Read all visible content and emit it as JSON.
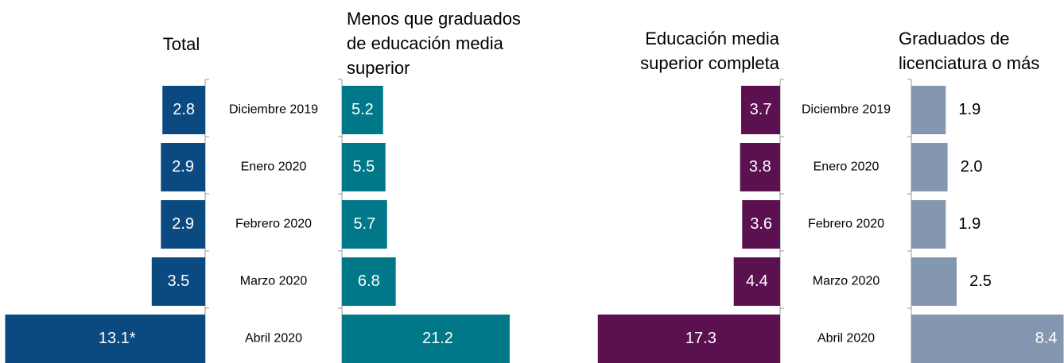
{
  "chart_data": {
    "type": "bar",
    "categories": [
      "Diciembre 2019",
      "Enero 2020",
      "Febrero 2020",
      "Marzo 2020",
      "Abril 2020"
    ],
    "series": [
      {
        "name": "Total",
        "color": "#0b4a80",
        "values": [
          2.8,
          2.9,
          2.9,
          3.5,
          13.1
        ],
        "value_labels": [
          "2.8",
          "2.9",
          "2.9",
          "3.5",
          "13.1*"
        ]
      },
      {
        "name": "Menos que graduados\nde educación media\nsuperior",
        "color": "#00788a",
        "values": [
          5.2,
          5.5,
          5.7,
          6.8,
          21.2
        ]
      },
      {
        "name": "Educación media\nsuperior completa",
        "color": "#5b1150",
        "values": [
          3.7,
          3.8,
          3.6,
          4.4,
          17.3
        ]
      },
      {
        "name": "Graduados de\nlicenciatura o más",
        "color": "#8497b0",
        "values": [
          1.9,
          2.0,
          1.9,
          2.5,
          8.4
        ],
        "value_labels": [
          "1.9",
          "2.0",
          "1.9",
          "2.5",
          "8.4"
        ]
      }
    ]
  }
}
